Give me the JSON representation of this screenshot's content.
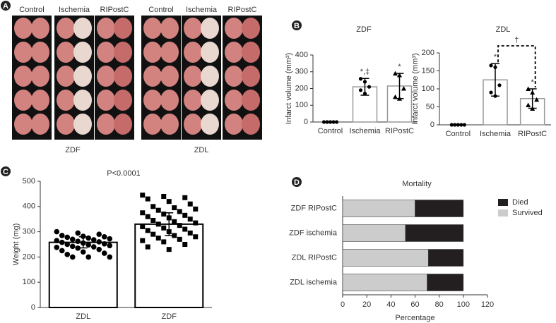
{
  "panel_labels": [
    "A",
    "B",
    "C",
    "D"
  ],
  "panel_a": {
    "columns": [
      "Control",
      "Ischemia",
      "RIPostC",
      "Control",
      "Ischemia",
      "RIPostC"
    ],
    "groups": [
      "ZDF",
      "ZDL"
    ]
  },
  "chart_data": [
    {
      "type": "bar",
      "title": "ZDF",
      "ylabel": "Infarct volume (mm³)",
      "categories": [
        "Control",
        "Ischemia",
        "RIPostC"
      ],
      "values": [
        0,
        210,
        215
      ],
      "errors": [
        0,
        50,
        75
      ],
      "points": [
        [
          0,
          0,
          0,
          0,
          0
        ],
        [
          258,
          240,
          210,
          190,
          170
        ],
        [
          290,
          280,
          200,
          150,
          140
        ]
      ],
      "annotations": [
        "*,‡",
        "*"
      ],
      "color": "#ffffff",
      "edge_color": "#999999",
      "ylim": [
        0,
        400
      ],
      "yticks": [
        0,
        100,
        200,
        300,
        400
      ]
    },
    {
      "type": "bar",
      "title": "ZDL",
      "ylabel": "Infarct volume (mm³)",
      "categories": [
        "Control",
        "Ischemia",
        "RIPostC"
      ],
      "values": [
        0,
        125,
        73
      ],
      "errors": [
        0,
        45,
        27
      ],
      "points": [
        [
          0,
          0,
          0,
          0,
          0
        ],
        [
          165,
          160,
          110,
          90,
          80
        ],
        [
          100,
          90,
          70,
          55,
          45
        ]
      ],
      "annotations": [
        "*",
        "*",
        "†"
      ],
      "color": "#ffffff",
      "edge_color": "#999999",
      "ylim": [
        0,
        200
      ],
      "yticks": [
        0,
        50,
        100,
        150,
        200
      ]
    },
    {
      "type": "bar",
      "ylabel": "Weight (mg)",
      "annotations": [
        "P<0.0001"
      ],
      "categories": [
        "ZDL",
        "ZDF"
      ],
      "values": [
        258,
        330
      ],
      "errors": [
        22,
        45
      ],
      "markers": [
        "circle",
        "square"
      ],
      "points": [
        [
          300,
          295,
          290,
          285,
          282,
          280,
          278,
          275,
          272,
          270,
          268,
          265,
          262,
          260,
          258,
          255,
          252,
          250,
          248,
          245,
          242,
          240,
          238,
          235,
          230,
          225,
          220,
          215,
          210,
          200,
          200,
          200
        ],
        [
          445,
          440,
          435,
          430,
          420,
          410,
          400,
          395,
          390,
          385,
          380,
          375,
          370,
          365,
          360,
          355,
          350,
          345,
          340,
          335,
          330,
          325,
          320,
          315,
          310,
          305,
          300,
          295,
          290,
          285,
          280,
          275,
          270,
          265,
          260,
          250,
          240,
          230
        ]
      ],
      "color": "#ffffff",
      "edge_color": "#000000",
      "ylim": [
        0,
        500
      ],
      "yticks": [
        0,
        100,
        200,
        300,
        400,
        500
      ]
    },
    {
      "type": "hbar-stacked",
      "title": "Mortality",
      "xlabel": "Percentage",
      "categories": [
        "ZDF RIPostC",
        "ZDF ischemia",
        "ZDL RIPostC",
        "ZDL ischemia"
      ],
      "series": [
        {
          "name": "Survived",
          "color": "#cccccc",
          "values": [
            60,
            52,
            71,
            70
          ]
        },
        {
          "name": "Died",
          "color": "#231f20",
          "values": [
            40,
            48,
            29,
            30
          ]
        }
      ],
      "xlim": [
        0,
        120
      ],
      "xticks": [
        0,
        20,
        40,
        60,
        80,
        100,
        120
      ]
    }
  ]
}
